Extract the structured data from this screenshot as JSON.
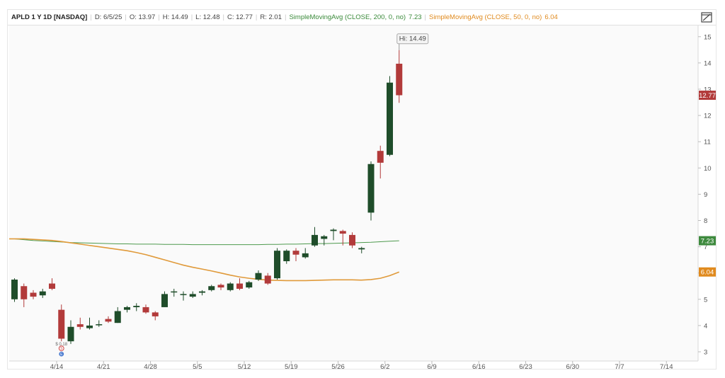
{
  "header": {
    "symbol": "APLD 1 Y 1D [NASDAQ]",
    "date": "D: 6/5/25",
    "open": "O: 13.97",
    "high": "H: 14.49",
    "low": "L: 12.48",
    "close": "C: 12.77",
    "range": "R: 2.01",
    "sma200_label": "SimpleMovingAvg (CLOSE, 200, 0, no)",
    "sma200_value": "7.23",
    "sma50_label": "SimpleMovingAvg (CLOSE, 50, 0, no)",
    "sma50_value": "6.04"
  },
  "colors": {
    "up": "#1f4d2a",
    "down": "#b23a3a",
    "sma200": "#4e9a4e",
    "sma50": "#e09a3a",
    "grid": "#eeeeee"
  },
  "icons": {
    "expand": "expand-icon"
  },
  "chart_data": {
    "type": "candlestick",
    "x_tick_labels": [
      "4/14",
      "4/21",
      "4/28",
      "5/5",
      "5/12",
      "5/19",
      "5/26",
      "6/2",
      "6/9",
      "6/16",
      "6/23",
      "6/30",
      "7/7",
      "7/14"
    ],
    "y_tick_labels": [
      3,
      4,
      5,
      6,
      7,
      8,
      9,
      10,
      11,
      12,
      13,
      14,
      15
    ],
    "ylim": [
      2.7,
      15.4
    ],
    "candles": [
      {
        "date": "4/7",
        "o": 5.0,
        "h": 5.8,
        "l": 4.9,
        "c": 5.75
      },
      {
        "date": "4/8",
        "o": 5.5,
        "h": 5.6,
        "l": 4.7,
        "c": 5.0
      },
      {
        "date": "4/9",
        "o": 5.25,
        "h": 5.35,
        "l": 5.0,
        "c": 5.1
      },
      {
        "date": "4/10",
        "o": 5.15,
        "h": 5.4,
        "l": 5.05,
        "c": 5.3
      },
      {
        "date": "4/11",
        "o": 5.6,
        "h": 5.8,
        "l": 5.35,
        "c": 5.4
      },
      {
        "date": "4/14",
        "o": 4.6,
        "h": 4.8,
        "l": 3.4,
        "c": 3.5
      },
      {
        "date": "4/15",
        "o": 3.4,
        "h": 4.2,
        "l": 3.3,
        "c": 3.95
      },
      {
        "date": "4/16",
        "o": 4.05,
        "h": 4.3,
        "l": 3.85,
        "c": 3.95
      },
      {
        "date": "4/17",
        "o": 3.9,
        "h": 4.3,
        "l": 3.85,
        "c": 4.0
      },
      {
        "date": "4/21",
        "o": 4.05,
        "h": 4.2,
        "l": 3.95,
        "c": 4.05
      },
      {
        "date": "4/22",
        "o": 4.25,
        "h": 4.35,
        "l": 4.1,
        "c": 4.15
      },
      {
        "date": "4/23",
        "o": 4.1,
        "h": 4.7,
        "l": 4.1,
        "c": 4.55
      },
      {
        "date": "4/24",
        "o": 4.6,
        "h": 4.75,
        "l": 4.5,
        "c": 4.7
      },
      {
        "date": "4/25",
        "o": 4.7,
        "h": 4.85,
        "l": 4.55,
        "c": 4.75
      },
      {
        "date": "4/28",
        "o": 4.7,
        "h": 4.8,
        "l": 4.45,
        "c": 4.5
      },
      {
        "date": "4/29",
        "o": 4.5,
        "h": 4.55,
        "l": 4.2,
        "c": 4.35
      },
      {
        "date": "4/30",
        "o": 4.7,
        "h": 5.3,
        "l": 4.7,
        "c": 5.2
      },
      {
        "date": "5/1",
        "o": 5.3,
        "h": 5.4,
        "l": 5.1,
        "c": 5.3
      },
      {
        "date": "5/2",
        "o": 5.2,
        "h": 5.3,
        "l": 4.95,
        "c": 5.2
      },
      {
        "date": "5/5",
        "o": 5.1,
        "h": 5.3,
        "l": 5.05,
        "c": 5.2
      },
      {
        "date": "5/6",
        "o": 5.25,
        "h": 5.35,
        "l": 5.15,
        "c": 5.3
      },
      {
        "date": "5/7",
        "o": 5.35,
        "h": 5.55,
        "l": 5.3,
        "c": 5.5
      },
      {
        "date": "5/8",
        "o": 5.55,
        "h": 5.6,
        "l": 5.35,
        "c": 5.45
      },
      {
        "date": "5/9",
        "o": 5.35,
        "h": 5.65,
        "l": 5.3,
        "c": 5.6
      },
      {
        "date": "5/12",
        "o": 5.6,
        "h": 5.8,
        "l": 5.35,
        "c": 5.4
      },
      {
        "date": "5/13",
        "o": 5.45,
        "h": 5.7,
        "l": 5.4,
        "c": 5.65
      },
      {
        "date": "5/14",
        "o": 5.75,
        "h": 6.1,
        "l": 5.7,
        "c": 6.0
      },
      {
        "date": "5/15",
        "o": 5.9,
        "h": 6.0,
        "l": 5.55,
        "c": 5.6
      },
      {
        "date": "5/16",
        "o": 5.8,
        "h": 6.95,
        "l": 5.75,
        "c": 6.85
      },
      {
        "date": "5/19",
        "o": 6.45,
        "h": 6.9,
        "l": 6.35,
        "c": 6.85
      },
      {
        "date": "5/20",
        "o": 6.85,
        "h": 6.95,
        "l": 6.45,
        "c": 6.7
      },
      {
        "date": "5/21",
        "o": 6.6,
        "h": 6.95,
        "l": 6.55,
        "c": 6.75
      },
      {
        "date": "5/22",
        "o": 7.05,
        "h": 7.75,
        "l": 7.0,
        "c": 7.45
      },
      {
        "date": "5/23",
        "o": 7.3,
        "h": 7.45,
        "l": 7.05,
        "c": 7.4
      },
      {
        "date": "5/27",
        "o": 7.6,
        "h": 7.7,
        "l": 7.25,
        "c": 7.65
      },
      {
        "date": "5/28",
        "o": 7.6,
        "h": 7.65,
        "l": 7.05,
        "c": 7.5
      },
      {
        "date": "5/29",
        "o": 7.45,
        "h": 7.55,
        "l": 6.95,
        "c": 7.05
      },
      {
        "date": "5/30",
        "o": 6.9,
        "h": 7.0,
        "l": 6.75,
        "c": 6.95
      },
      {
        "date": "6/2",
        "o": 8.3,
        "h": 10.25,
        "l": 8.0,
        "c": 10.15
      },
      {
        "date": "6/3",
        "o": 10.65,
        "h": 10.85,
        "l": 9.6,
        "c": 10.2
      },
      {
        "date": "6/4",
        "o": 10.5,
        "h": 13.5,
        "l": 10.45,
        "c": 13.25
      },
      {
        "date": "6/5",
        "o": 13.97,
        "h": 14.49,
        "l": 12.48,
        "c": 12.77
      }
    ],
    "sma200": [
      7.3,
      7.27,
      7.24,
      7.22,
      7.2,
      7.18,
      7.16,
      7.15,
      7.14,
      7.13,
      7.12,
      7.11,
      7.11,
      7.1,
      7.1,
      7.1,
      7.09,
      7.09,
      7.09,
      7.08,
      7.08,
      7.08,
      7.08,
      7.08,
      7.08,
      7.08,
      7.08,
      7.09,
      7.09,
      7.1,
      7.1,
      7.11,
      7.12,
      7.12,
      7.13,
      7.14,
      7.15,
      7.16,
      7.17,
      7.19,
      7.21,
      7.23
    ],
    "sma50": [
      7.3,
      7.3,
      7.28,
      7.26,
      7.24,
      7.2,
      7.15,
      7.1,
      7.05,
      7.0,
      6.95,
      6.9,
      6.85,
      6.78,
      6.7,
      6.6,
      6.5,
      6.4,
      6.3,
      6.22,
      6.15,
      6.08,
      6.0,
      5.92,
      5.85,
      5.8,
      5.76,
      5.73,
      5.72,
      5.71,
      5.71,
      5.71,
      5.72,
      5.73,
      5.74,
      5.74,
      5.74,
      5.73,
      5.75,
      5.8,
      5.9,
      6.04
    ],
    "last_price_label": "12.77",
    "sma200_label": "7.23",
    "sma50_label": "6.04",
    "high_annotation": "Hi: 14.49",
    "dividend_marker": "$ 0.18",
    "event_markers": [
      "S",
      "E"
    ]
  }
}
